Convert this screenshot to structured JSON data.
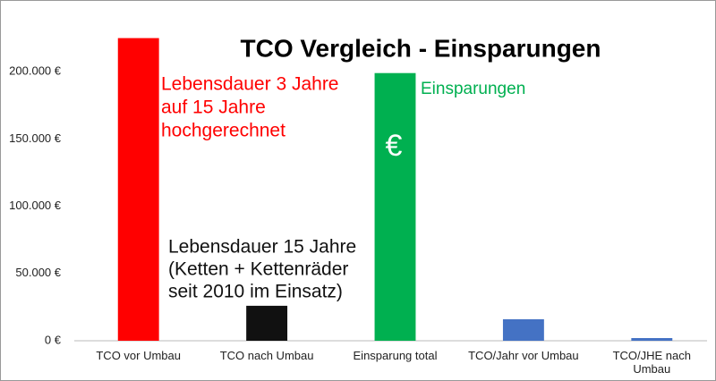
{
  "chart_data": {
    "type": "bar",
    "title": "TCO Vergleich - Einsparungen",
    "categories": [
      "TCO vor Umbau",
      "TCO nach Umbau",
      "Einsparung total",
      "TCO/Jahr vor Umbau",
      "TCO/JHE nach Umbau"
    ],
    "values": [
      225000,
      26000,
      199000,
      16000,
      2000
    ],
    "colors": [
      "#ff0000",
      "#111111",
      "#00b050",
      "#4472c4",
      "#4472c4"
    ],
    "ylim": [
      0,
      250000
    ],
    "yticks": [
      {
        "value": 0,
        "label": "0 €"
      },
      {
        "value": 50000,
        "label": "50.000 €"
      },
      {
        "value": 100000,
        "label": "100.000 €"
      },
      {
        "value": 150000,
        "label": "150.000 €"
      },
      {
        "value": 200000,
        "label": "200.000 €"
      }
    ],
    "grid": false,
    "annotations": [
      {
        "lines": [
          "Lebensdauer 3 Jahre",
          "auf 15 Jahre",
          "hochgerechnet"
        ],
        "color": "#ff0000"
      },
      {
        "lines": [
          "Lebensdauer 15 Jahre",
          "(Ketten + Kettenräder",
          "seit 2010 im Einsatz)"
        ],
        "color": "#111111"
      },
      {
        "lines": [
          "Einsparungen"
        ],
        "color": "#00b050"
      },
      {
        "lines": [
          "€"
        ],
        "color": "#ffffff"
      }
    ]
  }
}
